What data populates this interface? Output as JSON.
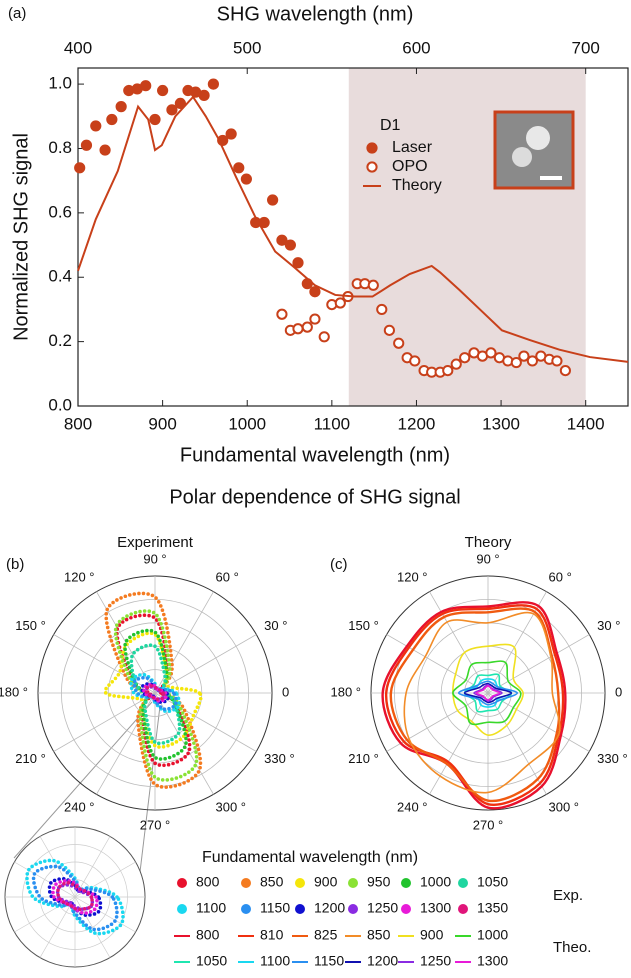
{
  "figure": {
    "section_title": "Polar dependence of SHG signal",
    "legend_title": "Fundamental wavelength (nm)"
  },
  "chart_data": [
    {
      "type": "scatter",
      "panel": "(a)",
      "xlabel": "Fundamental wavelength (nm)",
      "ylabel": "Normalized SHG signal",
      "x2label": "SHG wavelength (nm)",
      "xlim": [
        800,
        1450
      ],
      "xticks": [
        800,
        900,
        1000,
        1100,
        1200,
        1300,
        1400
      ],
      "x2lim": [
        400,
        725
      ],
      "x2ticks": [
        400,
        500,
        600,
        700
      ],
      "ylim": [
        0,
        1.05
      ],
      "yticks": [
        {
          "value": 0,
          "label": "0.0"
        },
        0.2,
        0.4,
        0.6,
        0.8,
        {
          "value": 1,
          "label": "1.0"
        }
      ],
      "highlight": [
        1120,
        1400
      ],
      "highlight_color": "#e8dcdc",
      "legend_title": "D1",
      "series": [
        {
          "name": "Laser",
          "type": "scatter",
          "marker": "filled",
          "color": "#c8401a",
          "x": [
            802,
            810,
            821,
            832,
            840,
            851,
            860,
            870,
            880,
            891,
            900,
            911,
            921,
            930,
            939,
            949,
            960,
            971,
            981,
            990,
            999,
            1010,
            1020,
            1030,
            1041,
            1051,
            1060,
            1071,
            1080
          ],
          "values": [
            0.74,
            0.81,
            0.87,
            0.795,
            0.89,
            0.93,
            0.98,
            0.985,
            0.995,
            0.89,
            0.98,
            0.92,
            0.94,
            0.98,
            0.975,
            0.965,
            1.0,
            0.825,
            0.845,
            0.74,
            0.705,
            0.57,
            0.57,
            0.64,
            0.515,
            0.5,
            0.445,
            0.38,
            0.355
          ]
        },
        {
          "name": "OPO",
          "type": "scatter",
          "marker": "open",
          "color": "#c8401a",
          "x": [
            1041,
            1051,
            1060,
            1071,
            1080,
            1091,
            1100,
            1110,
            1119,
            1130,
            1139,
            1149,
            1159,
            1168,
            1179,
            1189,
            1198,
            1209,
            1218,
            1228,
            1237,
            1247,
            1257,
            1268,
            1278,
            1288,
            1298,
            1308,
            1318,
            1327,
            1337,
            1347,
            1357,
            1366,
            1376
          ],
          "values": [
            0.285,
            0.235,
            0.24,
            0.245,
            0.27,
            0.215,
            0.315,
            0.32,
            0.34,
            0.38,
            0.38,
            0.375,
            0.3,
            0.235,
            0.195,
            0.15,
            0.14,
            0.11,
            0.105,
            0.105,
            0.11,
            0.13,
            0.15,
            0.165,
            0.155,
            0.165,
            0.15,
            0.14,
            0.135,
            0.155,
            0.14,
            0.155,
            0.145,
            0.14,
            0.11
          ]
        },
        {
          "name": "Theory",
          "type": "line",
          "color": "#c8401a",
          "x": [
            800,
            821,
            847,
            871,
            883,
            891,
            899,
            915,
            936,
            951,
            966,
            987,
            1009,
            1033,
            1056,
            1080,
            1104,
            1127,
            1148,
            1169,
            1192,
            1218,
            1228,
            1251,
            1275,
            1301,
            1334,
            1369,
            1405,
            1450
          ],
          "values": [
            0.42,
            0.58,
            0.73,
            0.93,
            0.89,
            0.795,
            0.81,
            0.9,
            0.96,
            0.9,
            0.83,
            0.71,
            0.59,
            0.48,
            0.43,
            0.375,
            0.345,
            0.34,
            0.34,
            0.375,
            0.41,
            0.435,
            0.415,
            0.36,
            0.3,
            0.235,
            0.205,
            0.175,
            0.152,
            0.137
          ]
        }
      ]
    },
    {
      "type": "polar",
      "panel": "(b)",
      "title": "Experiment",
      "legend_label": "Exp.",
      "line_style": "dotted",
      "rlim": [
        0,
        1
      ],
      "rgrid": [
        0.2,
        0.4,
        0.6,
        0.8,
        1
      ],
      "inset_rlim": [
        0,
        0.3
      ],
      "theta": [
        0,
        30,
        60,
        90,
        120,
        150,
        180,
        210,
        240,
        270,
        300,
        330
      ],
      "thetaticks": [
        {
          "value": 0,
          "label": "0"
        },
        {
          "value": 30,
          "label": "30 °"
        },
        {
          "value": 60,
          "label": "60 °"
        },
        {
          "value": 90,
          "label": "90 °"
        },
        {
          "value": 120,
          "label": "120 °"
        },
        {
          "value": 150,
          "label": "150 °"
        },
        {
          "value": 180,
          "label": "180 °"
        },
        {
          "value": 210,
          "label": "210 °"
        },
        {
          "value": 240,
          "label": "240 °"
        },
        {
          "value": 270,
          "label": "270 °"
        },
        {
          "value": 300,
          "label": "300 °"
        },
        {
          "value": 330,
          "label": "330 °"
        }
      ],
      "series": [
        {
          "name": "800",
          "color": "#e8112d",
          "values": [
            0.05,
            0.05,
            0.22,
            0.64,
            0.64,
            0.22,
            0.05,
            0.05,
            0.22,
            0.6,
            0.58,
            0.22
          ]
        },
        {
          "name": "850",
          "color": "#f47b20",
          "values": [
            0.08,
            0.08,
            0.29,
            0.82,
            0.82,
            0.29,
            0.08,
            0.08,
            0.29,
            0.78,
            0.76,
            0.29
          ]
        },
        {
          "name": "900",
          "color": "#f5e60a",
          "values": [
            0.38,
            0.12,
            0.2,
            0.5,
            0.48,
            0.35,
            0.42,
            0.12,
            0.2,
            0.45,
            0.45,
            0.38
          ]
        },
        {
          "name": "950",
          "color": "#8ae234",
          "values": [
            0.1,
            0.08,
            0.25,
            0.68,
            0.66,
            0.25,
            0.1,
            0.08,
            0.25,
            0.72,
            0.7,
            0.25
          ]
        },
        {
          "name": "1000",
          "color": "#22c32e",
          "values": [
            0.08,
            0.07,
            0.2,
            0.52,
            0.5,
            0.2,
            0.08,
            0.07,
            0.2,
            0.55,
            0.52,
            0.2
          ]
        },
        {
          "name": "1050",
          "color": "#1fd6a0",
          "values": [
            0.1,
            0.08,
            0.17,
            0.4,
            0.38,
            0.2,
            0.1,
            0.08,
            0.17,
            0.42,
            0.4,
            0.2
          ]
        },
        {
          "name": "1100",
          "color": "#19d8f0",
          "values": [
            0.18,
            0.08,
            0.03,
            0.08,
            0.18,
            0.23,
            0.18,
            0.08,
            0.03,
            0.08,
            0.18,
            0.23
          ]
        },
        {
          "name": "1150",
          "color": "#2a8ff0",
          "values": [
            0.16,
            0.07,
            0.04,
            0.07,
            0.15,
            0.2,
            0.15,
            0.07,
            0.04,
            0.07,
            0.16,
            0.2
          ]
        },
        {
          "name": "1200",
          "color": "#1010d0",
          "values": [
            0.1,
            0.05,
            0.03,
            0.05,
            0.09,
            0.12,
            0.1,
            0.05,
            0.03,
            0.05,
            0.09,
            0.12
          ]
        },
        {
          "name": "1250",
          "color": "#8a2be2",
          "values": [
            0.07,
            0.04,
            0.03,
            0.04,
            0.06,
            0.08,
            0.07,
            0.04,
            0.03,
            0.04,
            0.06,
            0.08
          ]
        },
        {
          "name": "1300",
          "color": "#e81ad8",
          "values": [
            0.09,
            0.05,
            0.04,
            0.06,
            0.08,
            0.1,
            0.09,
            0.05,
            0.04,
            0.05,
            0.08,
            0.1
          ]
        },
        {
          "name": "1350",
          "color": "#e0157a",
          "values": [
            0.07,
            0.05,
            0.04,
            0.05,
            0.07,
            0.08,
            0.07,
            0.05,
            0.04,
            0.05,
            0.06,
            0.08
          ]
        }
      ]
    },
    {
      "type": "polar",
      "panel": "(c)",
      "title": "Theory",
      "legend_label": "Theo.",
      "line_style": "solid",
      "rlim": [
        0,
        1
      ],
      "rgrid": [
        0.2,
        0.4,
        0.6,
        0.8,
        1
      ],
      "theta": [
        0,
        30,
        60,
        90,
        120,
        150,
        180,
        210,
        240,
        270,
        300,
        330
      ],
      "thetaticks": [
        {
          "value": 0,
          "label": "0"
        },
        {
          "value": 30,
          "label": "30 °"
        },
        {
          "value": 60,
          "label": "60 °"
        },
        {
          "value": 90,
          "label": "90 °"
        },
        {
          "value": 120,
          "label": "120 °"
        },
        {
          "value": 150,
          "label": "150 °"
        },
        {
          "value": 180,
          "label": "180 °"
        },
        {
          "value": 210,
          "label": "210 °"
        },
        {
          "value": 240,
          "label": "240 °"
        },
        {
          "value": 270,
          "label": "270 °"
        },
        {
          "value": 300,
          "label": "300 °"
        },
        {
          "value": 330,
          "label": "330 °"
        }
      ],
      "series": [
        {
          "name": "800",
          "color": "#e8112d",
          "values": [
            0.66,
            0.68,
            0.86,
            0.74,
            0.8,
            0.8,
            0.9,
            0.86,
            0.7,
            0.98,
            0.92,
            0.72
          ]
        },
        {
          "name": "810",
          "color": "#f03010",
          "values": [
            0.64,
            0.66,
            0.83,
            0.72,
            0.78,
            0.78,
            0.87,
            0.83,
            0.68,
            0.95,
            0.89,
            0.7
          ]
        },
        {
          "name": "825",
          "color": "#f05a10",
          "values": [
            0.6,
            0.63,
            0.8,
            0.69,
            0.75,
            0.74,
            0.83,
            0.8,
            0.7,
            0.92,
            0.85,
            0.68
          ]
        },
        {
          "name": "850",
          "color": "#f28c28",
          "values": [
            0.55,
            0.62,
            0.78,
            0.6,
            0.7,
            0.62,
            0.7,
            0.78,
            0.82,
            0.85,
            0.7,
            0.7
          ]
        },
        {
          "name": "900",
          "color": "#f0e020",
          "values": [
            0.3,
            0.25,
            0.45,
            0.4,
            0.4,
            0.32,
            0.3,
            0.3,
            0.28,
            0.36,
            0.32,
            0.28
          ]
        },
        {
          "name": "1000",
          "color": "#39d82a",
          "values": [
            0.28,
            0.2,
            0.3,
            0.26,
            0.28,
            0.22,
            0.3,
            0.22,
            0.3,
            0.25,
            0.28,
            0.25
          ]
        },
        {
          "name": "1050",
          "color": "#1fe6b0",
          "values": [
            0.2,
            0.12,
            0.18,
            0.15,
            0.17,
            0.14,
            0.2,
            0.13,
            0.18,
            0.15,
            0.16,
            0.14
          ]
        },
        {
          "name": "1100",
          "color": "#19d8f0",
          "values": [
            0.2,
            0.1,
            0.12,
            0.12,
            0.12,
            0.11,
            0.2,
            0.1,
            0.12,
            0.12,
            0.12,
            0.1
          ]
        },
        {
          "name": "1150",
          "color": "#2a8ff0",
          "values": [
            0.25,
            0.1,
            0.09,
            0.1,
            0.1,
            0.12,
            0.25,
            0.1,
            0.09,
            0.1,
            0.1,
            0.12
          ]
        },
        {
          "name": "1200",
          "color": "#1010b0",
          "values": [
            0.2,
            0.08,
            0.07,
            0.08,
            0.08,
            0.09,
            0.2,
            0.08,
            0.07,
            0.08,
            0.08,
            0.09
          ]
        },
        {
          "name": "1250",
          "color": "#8a2be2",
          "values": [
            0.12,
            0.06,
            0.05,
            0.07,
            0.06,
            0.06,
            0.12,
            0.06,
            0.05,
            0.07,
            0.06,
            0.06
          ]
        },
        {
          "name": "1300",
          "color": "#e81ad8",
          "values": [
            0.1,
            0.05,
            0.05,
            0.06,
            0.05,
            0.05,
            0.1,
            0.05,
            0.05,
            0.06,
            0.05,
            0.05
          ]
        }
      ]
    }
  ]
}
